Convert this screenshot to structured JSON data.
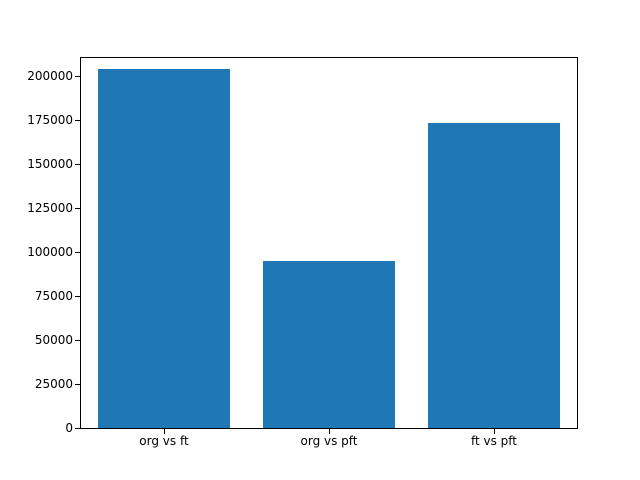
{
  "figure": {
    "background_color": "#ffffff",
    "axis_color": "#000000",
    "bar_color": "#1f77b4"
  },
  "chart_data": {
    "type": "bar",
    "categories": [
      "org vs ft",
      "org vs pft",
      "ft vs pft"
    ],
    "values": [
      204000,
      95000,
      173000
    ],
    "title": "",
    "xlabel": "",
    "ylabel": "",
    "ylim": [
      0,
      210000
    ],
    "yticks": [
      0,
      25000,
      50000,
      75000,
      100000,
      125000,
      150000,
      175000,
      200000
    ],
    "bar_width_fraction": 0.8,
    "grid": false,
    "legend": null
  }
}
